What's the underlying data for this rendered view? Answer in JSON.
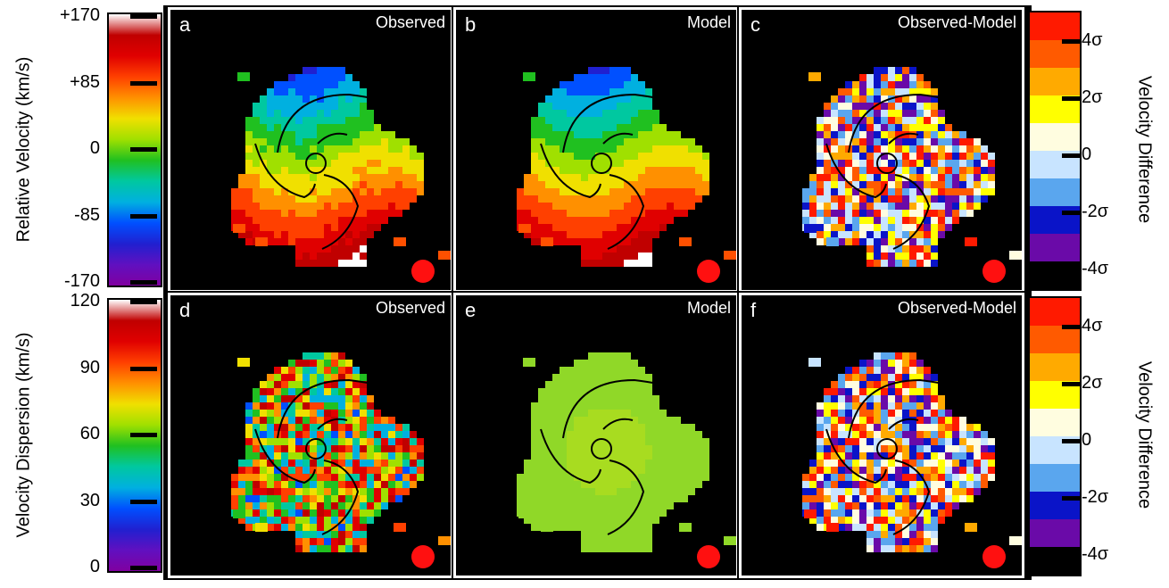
{
  "chart_data": {
    "type": "heatmap",
    "rows": [
      {
        "colorbar": {
          "label": "Relative Velocity (km/s)",
          "ticks": [
            "+170",
            "+85",
            "0",
            "-85",
            "-170"
          ],
          "range": [
            -170,
            170
          ]
        },
        "panels": [
          {
            "letter": "a",
            "title": "Observed"
          },
          {
            "letter": "b",
            "title": "Model"
          },
          {
            "letter": "c",
            "title": "Observed-Model"
          }
        ],
        "difference_colorbar": {
          "label": "Velocity Difference",
          "ticks": [
            "4σ",
            "2σ",
            "0",
            "-2σ",
            "-4σ"
          ],
          "colors": [
            "#ff1a00",
            "#ff5a00",
            "#ffaa00",
            "#ffff00",
            "#fffde0",
            "#c8e4ff",
            "#5aa6ee",
            "#0a14c8",
            "#6a0aa8",
            "#000000"
          ]
        }
      },
      {
        "colorbar": {
          "label": "Velocity Dispersion (km/s)",
          "ticks": [
            "120",
            "90",
            "60",
            "30",
            "0"
          ],
          "range": [
            0,
            120
          ]
        },
        "panels": [
          {
            "letter": "d",
            "title": "Observed"
          },
          {
            "letter": "e",
            "title": "Model"
          },
          {
            "letter": "f",
            "title": "Observed-Model"
          }
        ],
        "difference_colorbar": {
          "label": "Velocity Difference",
          "ticks": [
            "4σ",
            "2σ",
            "0",
            "-2σ",
            "-4σ"
          ],
          "colors": [
            "#ff1a00",
            "#ff5a00",
            "#ffaa00",
            "#ffff00",
            "#fffde0",
            "#c8e4ff",
            "#5aa6ee",
            "#0a14c8",
            "#6a0aa8",
            "#000000"
          ]
        }
      }
    ],
    "rainbow": [
      "#ffffff",
      "#c00000",
      "#e00000",
      "#ff4000",
      "#ff9000",
      "#f0e000",
      "#a0e000",
      "#20c020",
      "#00c8a0",
      "#00b0e0",
      "#0050ff",
      "#2020d0",
      "#6010c0",
      "#8000a0"
    ]
  }
}
